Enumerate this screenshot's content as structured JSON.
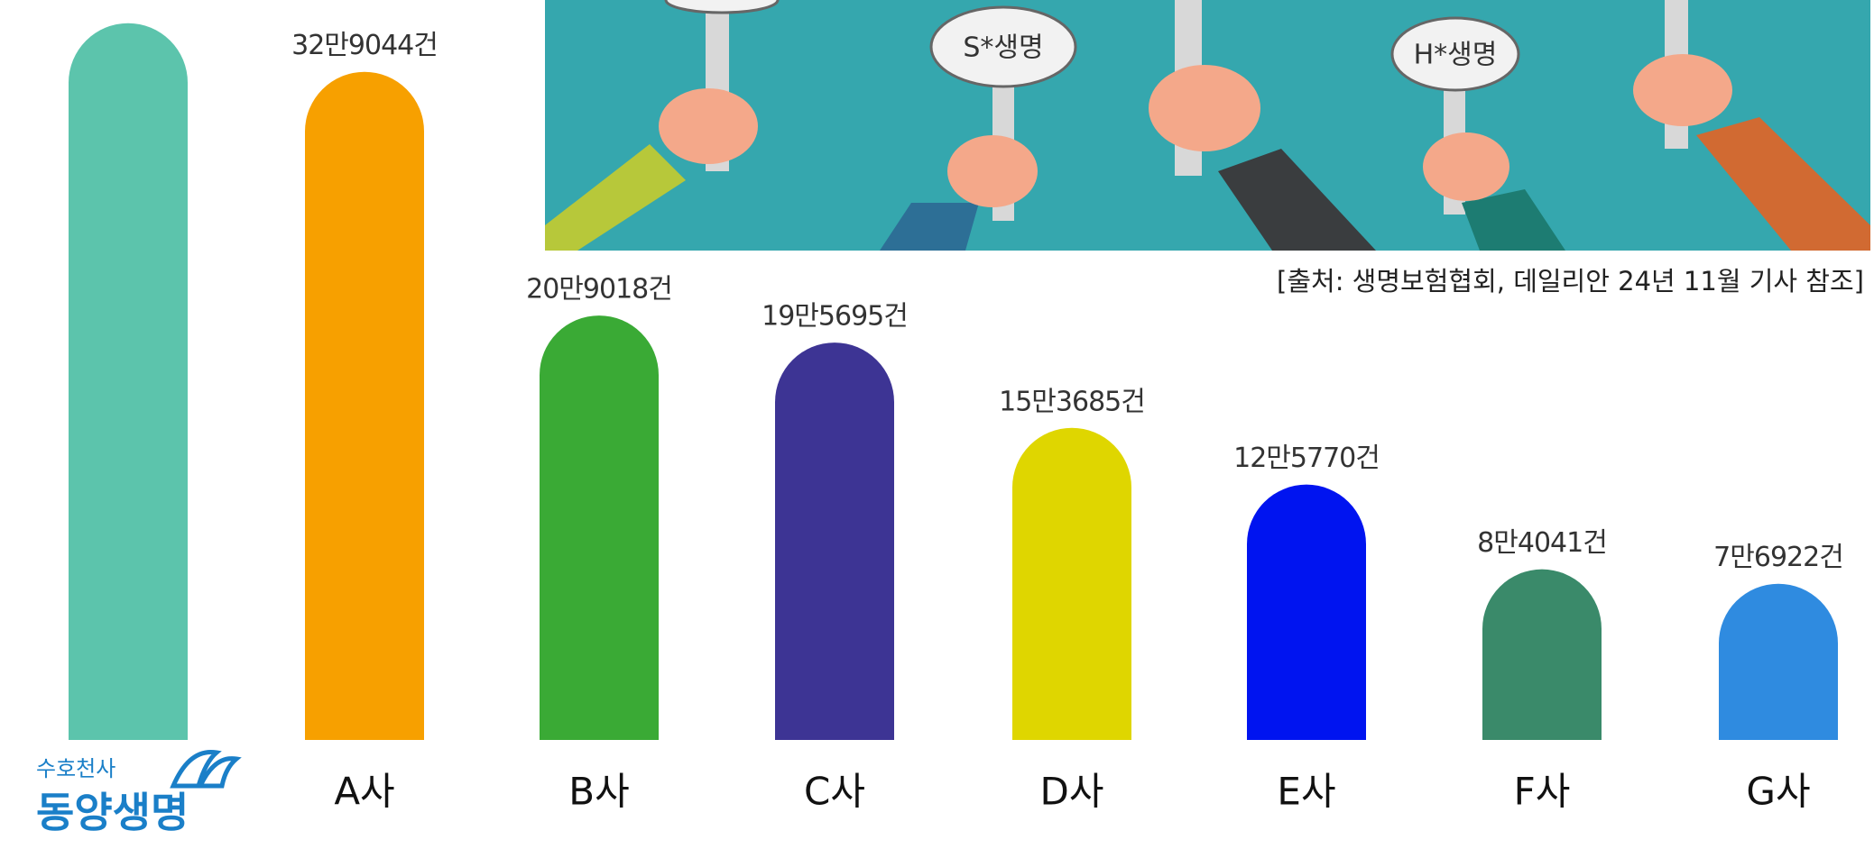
{
  "chart_data": {
    "type": "bar",
    "categories": [
      "동양생명",
      "A사",
      "B사",
      "C사",
      "D사",
      "E사",
      "F사",
      "G사"
    ],
    "values": [
      353000,
      329044,
      209018,
      195695,
      153685,
      125770,
      84041,
      76922
    ],
    "value_labels": [
      null,
      "32만9044건",
      "20만9018건",
      "19만5695건",
      "15만3685건",
      "12만5770건",
      "8만4041건",
      "7만6922건"
    ],
    "colors": [
      "#5cc4ac",
      "#f7a000",
      "#3aaa35",
      "#3d3494",
      "#dfd600",
      "#0014f0",
      "#3a8a6a",
      "#2f8be0"
    ],
    "ylim": [
      0,
      360000
    ],
    "logo_tagline": "수호천사",
    "source": "[출처: 생명보험협회, 데일리안 24년 11월 기사 참조]",
    "illustration_signs": [
      "S*생명",
      "H*생명"
    ]
  }
}
